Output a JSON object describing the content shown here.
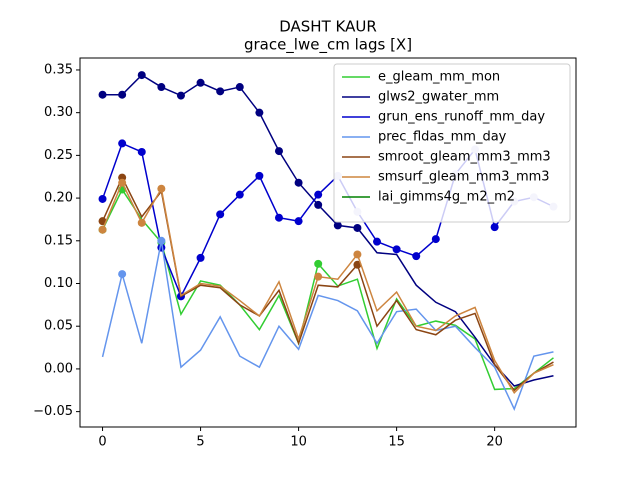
{
  "chart_data": {
    "type": "line",
    "title": "DASHT KAUR",
    "subtitle": "grace_lwe_cm lags [X]",
    "x": [
      0,
      1,
      2,
      3,
      4,
      5,
      6,
      7,
      8,
      9,
      10,
      11,
      12,
      13,
      14,
      15,
      16,
      17,
      18,
      19,
      20,
      21,
      22,
      23
    ],
    "xlim": [
      -1.15,
      24.15
    ],
    "xticks": [
      0,
      5,
      10,
      15,
      20
    ],
    "ylim": [
      -0.068,
      0.364
    ],
    "yticks": [
      {
        "value": -0.05,
        "label": "−0.05"
      },
      {
        "value": 0,
        "label": "0.00"
      },
      0.05,
      {
        "value": 0.1,
        "label": "0.10"
      },
      0.15,
      {
        "value": 0.2,
        "label": "0.20"
      },
      0.25,
      {
        "value": 0.3,
        "label": "0.30"
      },
      0.35
    ],
    "legend": "upper right",
    "series": [
      {
        "name": "e_gleam_mm_mon",
        "color": "#32cd32",
        "values": [
          0.163,
          0.21,
          0.175,
          0.148,
          0.064,
          0.103,
          0.098,
          0.075,
          0.046,
          0.086,
          0.03,
          0.123,
          0.097,
          0.105,
          0.024,
          0.082,
          0.05,
          0.056,
          0.051,
          0.035,
          -0.024,
          -0.023,
          -0.005,
          0.013
        ],
        "markers": [
          0,
          1,
          3,
          11
        ]
      },
      {
        "name": "glws2_gwater_mm",
        "color": "#000080",
        "values": [
          0.321,
          0.321,
          0.344,
          0.33,
          0.32,
          0.335,
          0.325,
          0.33,
          0.3,
          0.255,
          0.218,
          0.192,
          0.168,
          0.165,
          0.136,
          0.134,
          0.098,
          0.078,
          0.067,
          0.037,
          0.005,
          -0.02,
          -0.013,
          -0.008
        ],
        "markers": [
          0,
          1,
          2,
          3,
          4,
          5,
          6,
          7,
          8,
          9,
          10,
          11,
          12,
          13
        ]
      },
      {
        "name": "grun_ens_runoff_mm_day",
        "color": "#0000cd",
        "values": [
          0.199,
          0.264,
          0.254,
          0.142,
          0.085,
          0.13,
          0.181,
          0.204,
          0.226,
          0.177,
          0.173,
          0.204,
          0.226,
          0.184,
          0.149,
          0.14,
          0.132,
          0.152,
          0.228,
          0.257,
          0.166,
          0.196,
          0.201,
          0.19
        ],
        "markers": [
          0,
          1,
          2,
          3,
          4,
          5,
          6,
          7,
          8,
          9,
          10,
          11,
          14,
          15,
          16,
          17,
          20
        ],
        "faint_markers": [
          12,
          13,
          18,
          19,
          21,
          22,
          23
        ],
        "faint_color": "#c8c8f0"
      },
      {
        "name": "prec_fldas_mm_day",
        "color": "#6495ed",
        "values": [
          0.014,
          0.111,
          0.03,
          0.15,
          0.002,
          0.022,
          0.061,
          0.015,
          0.002,
          0.05,
          0.023,
          0.086,
          0.08,
          0.068,
          0.03,
          0.067,
          0.07,
          0.045,
          0.05,
          0.025,
          0.002,
          -0.047,
          0.015,
          0.02
        ],
        "markers": [
          1,
          3
        ]
      },
      {
        "name": "smroot_gleam_mm3_mm3",
        "color": "#8b4513",
        "values": [
          0.173,
          0.224,
          0.178,
          0.208,
          0.085,
          0.098,
          0.095,
          0.075,
          0.062,
          0.092,
          0.03,
          0.098,
          0.096,
          0.122,
          0.05,
          0.08,
          0.046,
          0.04,
          0.057,
          0.065,
          0.005,
          -0.025,
          -0.005,
          0.008
        ],
        "markers": [
          0,
          1,
          13
        ]
      },
      {
        "name": "smsurf_gleam_mm3_mm3",
        "color": "#cd853f",
        "values": [
          0.163,
          0.218,
          0.171,
          0.211,
          0.086,
          0.1,
          0.097,
          0.08,
          0.062,
          0.102,
          0.035,
          0.108,
          0.105,
          0.134,
          0.068,
          0.09,
          0.05,
          0.045,
          0.062,
          0.072,
          0.01,
          -0.028,
          -0.005,
          0.005
        ],
        "markers": [
          0,
          1,
          2,
          3,
          11,
          13
        ]
      },
      {
        "name": "lai_gimms4g_m2_m2",
        "color": "#008000",
        "values": [
          null,
          null,
          null,
          null,
          null,
          null,
          null,
          null,
          null,
          null,
          null,
          null,
          null,
          null,
          null,
          null,
          null,
          null,
          null,
          null,
          null,
          null,
          null,
          null
        ],
        "markers": []
      }
    ]
  }
}
